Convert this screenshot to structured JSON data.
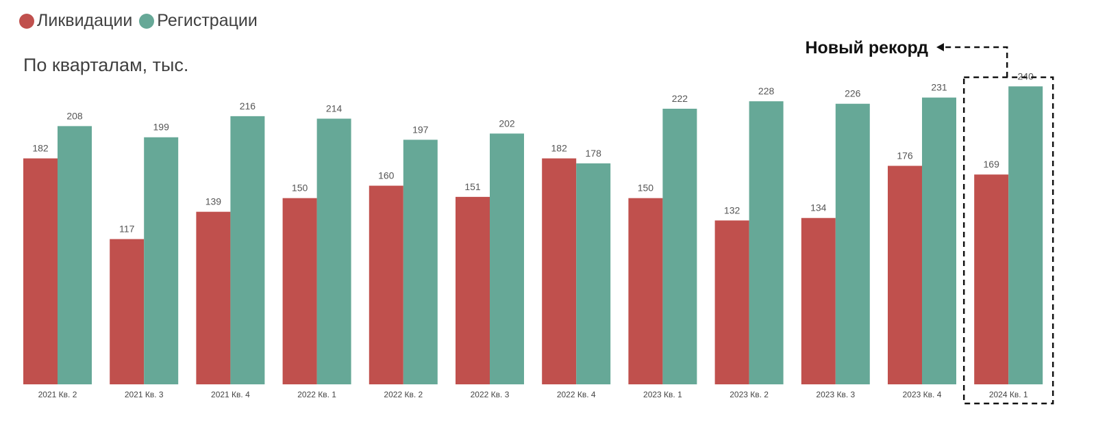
{
  "legend": {
    "items": [
      {
        "label": "Ликвидации",
        "color": "#c0504d"
      },
      {
        "label": "Регистрации",
        "color": "#66a897"
      }
    ]
  },
  "subtitle": "По кварталам, тыс.",
  "annotation": {
    "text": "Новый рекорд",
    "target_category": "2024 Кв. 1"
  },
  "chart_data": {
    "type": "bar",
    "title": "",
    "subtitle": "По кварталам, тыс.",
    "xlabel": "",
    "ylabel": "",
    "ylim": [
      0,
      260
    ],
    "grid": false,
    "legend_position": "top-left",
    "categories": [
      "2021 Кв. 2",
      "2021 Кв. 3",
      "2021 Кв. 4",
      "2022 Кв. 1",
      "2022 Кв. 2",
      "2022 Кв. 3",
      "2022 Кв. 4",
      "2023 Кв. 1",
      "2023 Кв. 2",
      "2023 Кв. 3",
      "2023 Кв. 4",
      "2024 Кв. 1"
    ],
    "series": [
      {
        "name": "Ликвидации",
        "color": "#c0504d",
        "values": [
          182,
          117,
          139,
          150,
          160,
          151,
          182,
          150,
          132,
          134,
          176,
          169
        ]
      },
      {
        "name": "Регистрации",
        "color": "#66a897",
        "values": [
          208,
          199,
          216,
          214,
          197,
          202,
          178,
          222,
          228,
          226,
          231,
          240
        ]
      }
    ]
  }
}
